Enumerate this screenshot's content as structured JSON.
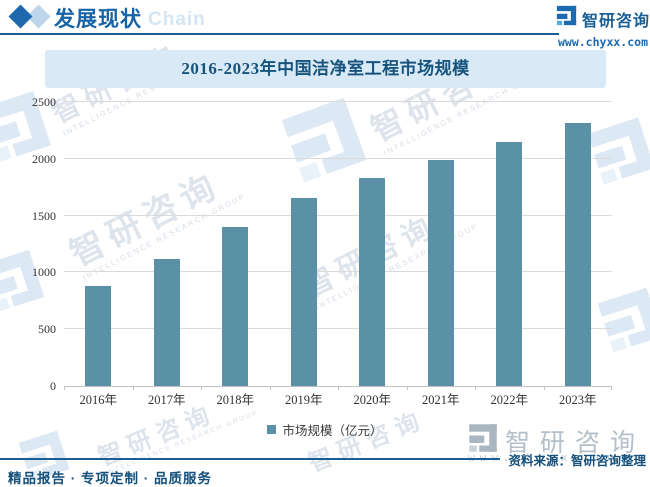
{
  "header": {
    "section_title": "发展现状",
    "section_watermark": "Chain",
    "brand_name": "智研咨询",
    "brand_url": "www.chyxx.com"
  },
  "chart_data": {
    "type": "bar",
    "title": "2016-2023年中国洁净室工程市场规模",
    "categories": [
      "2016年",
      "2017年",
      "2018年",
      "2019年",
      "2020年",
      "2021年",
      "2022年",
      "2023年"
    ],
    "values": [
      880,
      1120,
      1400,
      1655,
      1830,
      1990,
      2150,
      2315
    ],
    "series_name": "市场规模（亿元）",
    "ylabel": "",
    "xlabel": "",
    "ylim": [
      0,
      2500
    ],
    "yticks": [
      0,
      500,
      1000,
      1500,
      2000,
      2500
    ],
    "grid": true,
    "legend_position": "bottom",
    "bar_color": "#5b91a7"
  },
  "watermark": {
    "cn": "智研咨询",
    "en": "INTELLIGENCE RESEARCH GROUP",
    "url": "www.chyxx.com"
  },
  "footer": {
    "source": "资料来源：智研咨询整理",
    "tagline": "精品报告 · 专项定制 · 品质服务"
  },
  "colors": {
    "brand_dark_blue": "#1b5e94",
    "banner_bg": "#d9eaf6",
    "bar": "#5b91a7",
    "gridline": "#dadada"
  }
}
